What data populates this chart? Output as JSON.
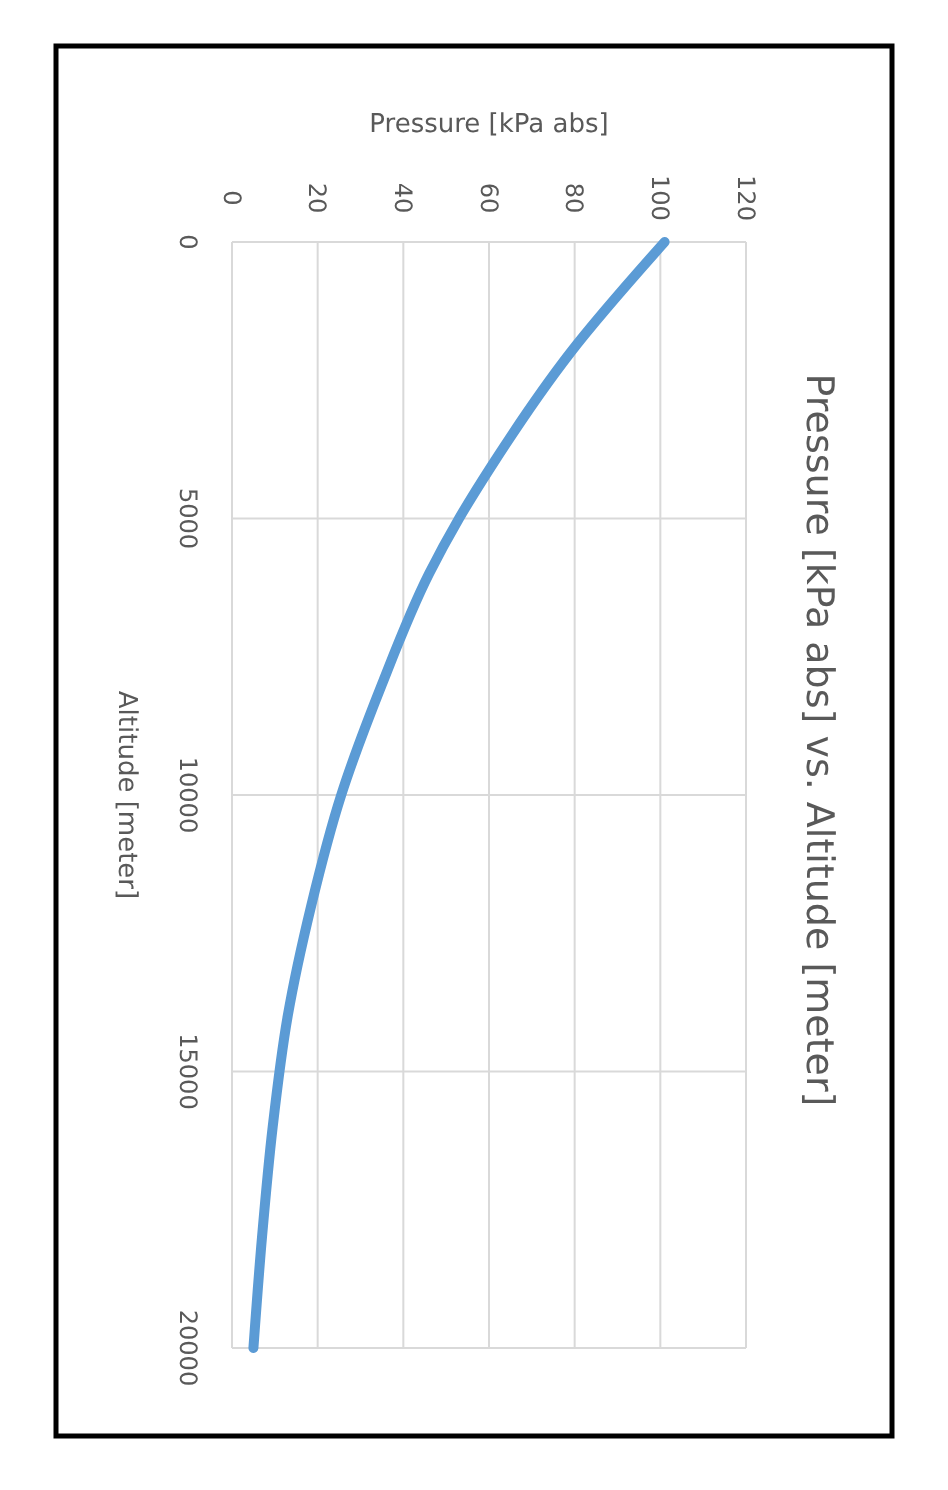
{
  "chart_data": {
    "type": "line",
    "title": "Pressure  [kPa abs] vs. Altitude [meter]",
    "xlabel": "Pressure [kPa abs]",
    "ylabel": "Altitude [meter]",
    "series": [
      {
        "color": "#5b9bd5",
        "x": [
          101,
          79,
          61,
          53,
          46,
          35,
          25.5,
          18.5,
          13,
          9.5,
          7,
          5
        ],
        "values": [
          0,
          2000,
          4000,
          5000,
          6000,
          8000,
          10000,
          12000,
          14000,
          16000,
          18000,
          20000
        ]
      }
    ],
    "xlim": [
      0,
      120
    ],
    "xticks": [
      0,
      20,
      40,
      60,
      80,
      100,
      120
    ],
    "ylim": [
      20000,
      0
    ],
    "yticks": [
      0,
      5000,
      10000,
      15000,
      20000
    ],
    "grid": true,
    "marker": "none"
  }
}
